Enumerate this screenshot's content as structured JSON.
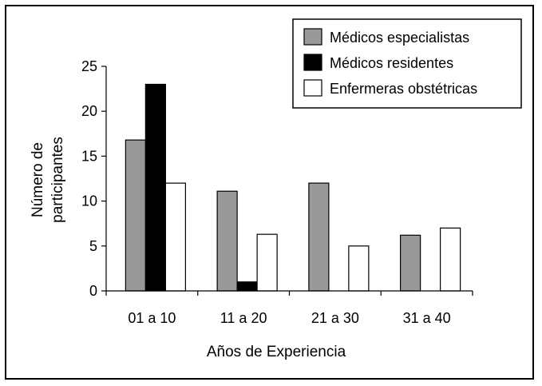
{
  "chart_data": {
    "type": "bar",
    "title": "",
    "xlabel": "Años de Experiencia",
    "ylabel": [
      "Número de",
      "participantes"
    ],
    "ylim": [
      0,
      25
    ],
    "yticks": [
      0,
      5,
      10,
      15,
      20,
      25
    ],
    "categories": [
      "01 a 10",
      "11 a 20",
      "21 a 30",
      "31 a 40"
    ],
    "grid": false,
    "legend_position": "top-right",
    "series": [
      {
        "name": "Médicos especialistas",
        "color": "#999999",
        "values": [
          16.8,
          11.1,
          12,
          6.2
        ]
      },
      {
        "name": "Médicos residentes",
        "color": "#000000",
        "values": [
          23,
          1,
          0,
          0
        ]
      },
      {
        "name": "Enfermeras obstétricas",
        "color": "#ffffff",
        "values": [
          12,
          6.3,
          5,
          7
        ]
      }
    ]
  }
}
